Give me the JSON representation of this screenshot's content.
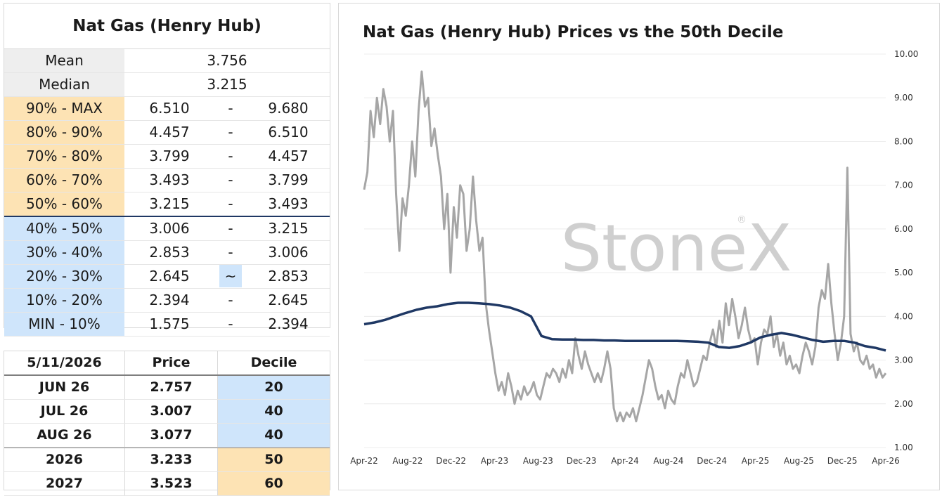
{
  "stats": {
    "title": "Nat Gas (Henry Hub)",
    "mean_label": "Mean",
    "mean_value": "3.756",
    "median_label": "Median",
    "median_value": "3.215",
    "ranges": [
      {
        "label": "90% - MAX",
        "low": "6.510",
        "sep": "-",
        "high": "9.680",
        "color": "orange"
      },
      {
        "label": "80% - 90%",
        "low": "4.457",
        "sep": "-",
        "high": "6.510",
        "color": "orange"
      },
      {
        "label": "70% - 80%",
        "low": "3.799",
        "sep": "-",
        "high": "4.457",
        "color": "orange"
      },
      {
        "label": "60% - 70%",
        "low": "3.493",
        "sep": "-",
        "high": "3.799",
        "color": "orange"
      },
      {
        "label": "50% - 60%",
        "low": "3.215",
        "sep": "-",
        "high": "3.493",
        "color": "orange"
      },
      {
        "label": "40% - 50%",
        "low": "3.006",
        "sep": "-",
        "high": "3.215",
        "color": "blue"
      },
      {
        "label": "30% - 40%",
        "low": "2.853",
        "sep": "-",
        "high": "3.006",
        "color": "blue"
      },
      {
        "label": "20% - 30%",
        "low": "2.645",
        "sep": "~",
        "high": "2.853",
        "color": "blue"
      },
      {
        "label": "10% - 20%",
        "low": "2.394",
        "sep": "-",
        "high": "2.645",
        "color": "blue"
      },
      {
        "label": "MIN - 10%",
        "low": "1.575",
        "sep": "-",
        "high": "2.394",
        "color": "blue"
      }
    ]
  },
  "deciles": {
    "date": "5/11/2026",
    "price_header": "Price",
    "decile_header": "Decile",
    "rows": [
      {
        "contract": "JUN 26",
        "price": "2.757",
        "decile": "20",
        "color": "blue"
      },
      {
        "contract": "JUL 26",
        "price": "3.007",
        "decile": "40",
        "color": "blue"
      },
      {
        "contract": "AUG 26",
        "price": "3.077",
        "decile": "40",
        "color": "blue"
      },
      {
        "contract": "2026",
        "price": "3.233",
        "decile": "50",
        "color": "orange"
      },
      {
        "contract": "2027",
        "price": "3.523",
        "decile": "60",
        "color": "orange"
      }
    ]
  },
  "chart_data": {
    "type": "line",
    "title": "Nat Gas (Henry Hub) Prices vs the 50th Decile",
    "watermark": "StoneX",
    "watermark_mark": "®",
    "x_ticks": [
      "Apr-22",
      "Aug-22",
      "Dec-22",
      "Apr-23",
      "Aug-23",
      "Dec-23",
      "Apr-24",
      "Aug-24",
      "Dec-24",
      "Apr-25",
      "Aug-25",
      "Dec-25",
      "Apr-26"
    ],
    "y_ticks": [
      "1.00",
      "2.00",
      "3.00",
      "4.00",
      "5.00",
      "6.00",
      "7.00",
      "8.00",
      "9.00",
      "10.00"
    ],
    "ylim": [
      1,
      10
    ],
    "series": [
      {
        "color": "#a6a6a6",
        "values": [
          6.9,
          7.3,
          8.7,
          8.1,
          9.0,
          8.4,
          9.2,
          8.8,
          8.0,
          8.7,
          6.8,
          5.5,
          6.7,
          6.3,
          7.0,
          8.0,
          7.2,
          8.7,
          9.6,
          8.8,
          9.0,
          7.9,
          8.3,
          7.7,
          7.2,
          6.0,
          6.8,
          5.0,
          6.5,
          5.8,
          7.0,
          6.8,
          5.5,
          6.0,
          7.2,
          6.2,
          5.5,
          5.8,
          4.3,
          3.7,
          3.2,
          2.7,
          2.3,
          2.5,
          2.2,
          2.7,
          2.4,
          2.0,
          2.3,
          2.1,
          2.4,
          2.2,
          2.3,
          2.5,
          2.2,
          2.1,
          2.4,
          2.7,
          2.6,
          2.8,
          2.7,
          2.5,
          2.8,
          2.6,
          3.0,
          2.7,
          3.5,
          3.1,
          2.8,
          3.2,
          2.9,
          2.7,
          2.5,
          2.7,
          2.5,
          2.8,
          3.2,
          2.8,
          1.9,
          1.6,
          1.8,
          1.6,
          1.8,
          1.7,
          1.9,
          1.6,
          1.9,
          2.2,
          2.6,
          3.0,
          2.8,
          2.4,
          2.1,
          2.2,
          1.9,
          2.3,
          2.1,
          2.0,
          2.4,
          2.7,
          2.6,
          3.0,
          2.7,
          2.4,
          2.5,
          2.8,
          3.1,
          3.0,
          3.4,
          3.7,
          3.3,
          3.9,
          3.4,
          4.3,
          3.8,
          4.4,
          4.0,
          3.5,
          3.8,
          4.2,
          3.7,
          3.4,
          3.5,
          2.9,
          3.4,
          3.7,
          3.6,
          4.0,
          3.3,
          3.6,
          3.1,
          3.4,
          2.9,
          3.1,
          2.8,
          2.9,
          2.7,
          3.1,
          3.4,
          3.2,
          2.9,
          3.3,
          4.2,
          4.6,
          4.4,
          5.2,
          4.3,
          3.6,
          3.0,
          3.4,
          4.0,
          7.4,
          3.6,
          3.2,
          3.4,
          3.0,
          2.9,
          3.1,
          2.8,
          2.9,
          2.6,
          2.8,
          2.6,
          2.7
        ]
      },
      {
        "color": "#1f3864",
        "values": [
          3.82,
          3.86,
          3.92,
          4.0,
          4.08,
          4.15,
          4.2,
          4.23,
          4.28,
          4.31,
          4.31,
          4.3,
          4.28,
          4.25,
          4.2,
          4.12,
          4.0,
          3.55,
          3.48,
          3.47,
          3.47,
          3.46,
          3.46,
          3.45,
          3.45,
          3.44,
          3.44,
          3.44,
          3.44,
          3.44,
          3.44,
          3.43,
          3.42,
          3.4,
          3.3,
          3.28,
          3.32,
          3.4,
          3.52,
          3.58,
          3.62,
          3.58,
          3.52,
          3.46,
          3.42,
          3.44,
          3.44,
          3.4,
          3.32,
          3.28,
          3.22
        ]
      }
    ]
  }
}
